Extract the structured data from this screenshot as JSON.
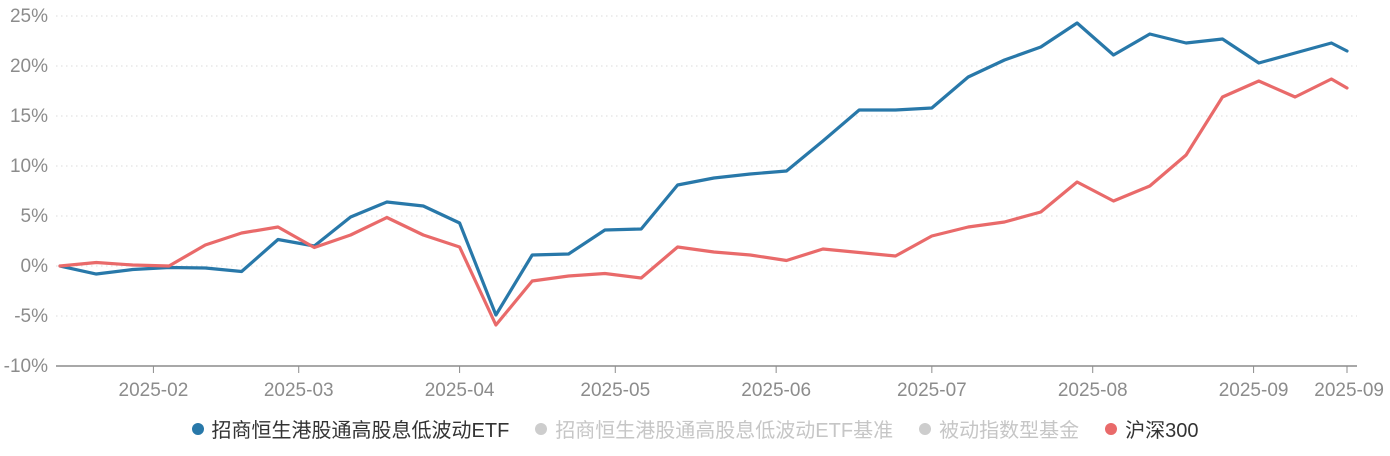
{
  "chart_data": {
    "type": "line",
    "ylabel": "",
    "xlabel": "",
    "ylim": [
      -10,
      25
    ],
    "grid": "horizontal-dotted",
    "legend_position": "bottom-center",
    "axis_label_color": "#8c8c8c",
    "gridline_color": "#e2e2e2",
    "baseline_color": "#8c8c8c",
    "y_ticks": [
      {
        "label": "25%",
        "value": 25
      },
      {
        "label": "20%",
        "value": 20
      },
      {
        "label": "15%",
        "value": 15
      },
      {
        "label": "10%",
        "value": 10
      },
      {
        "label": "5%",
        "value": 5
      },
      {
        "label": "0%",
        "value": 0
      },
      {
        "label": "-5%",
        "value": -5
      },
      {
        "label": "-10%",
        "value": -10
      }
    ],
    "x_ticks": [
      {
        "label": "2025-02",
        "day": 18
      },
      {
        "label": "2025-03",
        "day": 46
      },
      {
        "label": "2025-04",
        "day": 77
      },
      {
        "label": "2025-05",
        "day": 107
      },
      {
        "label": "2025-06",
        "day": 138
      },
      {
        "label": "2025-07",
        "day": 168
      },
      {
        "label": "2025-08",
        "day": 199
      },
      {
        "label": "2025-09",
        "day": 230
      },
      {
        "label": "2025-09",
        "day": 248
      }
    ],
    "total_days": 248,
    "x": [
      "2025-01-14",
      "2025-01-21",
      "2025-01-28",
      "2025-02-04",
      "2025-02-11",
      "2025-02-18",
      "2025-02-25",
      "2025-03-04",
      "2025-03-11",
      "2025-03-18",
      "2025-03-25",
      "2025-04-01",
      "2025-04-08",
      "2025-04-15",
      "2025-04-22",
      "2025-04-29",
      "2025-05-06",
      "2025-05-13",
      "2025-05-20",
      "2025-05-27",
      "2025-06-03",
      "2025-06-10",
      "2025-06-17",
      "2025-06-24",
      "2025-07-01",
      "2025-07-08",
      "2025-07-15",
      "2025-07-22",
      "2025-07-29",
      "2025-08-05",
      "2025-08-12",
      "2025-08-19",
      "2025-08-26",
      "2025-09-02",
      "2025-09-09",
      "2025-09-16",
      "2025-09-19"
    ],
    "days": [
      0,
      7,
      14,
      21,
      28,
      35,
      42,
      49,
      56,
      63,
      70,
      77,
      84,
      91,
      98,
      105,
      112,
      119,
      126,
      133,
      140,
      147,
      154,
      161,
      168,
      175,
      182,
      189,
      196,
      203,
      210,
      217,
      224,
      231,
      238,
      245,
      248
    ],
    "series": [
      {
        "name": "招商恒生港股通高股息低波动ETF",
        "color": "#2878a9",
        "enabled": true,
        "unit": "%",
        "values": [
          0.0,
          -0.8,
          -0.35,
          -0.15,
          -0.2,
          -0.55,
          2.65,
          2.0,
          4.9,
          6.4,
          6.0,
          4.3,
          -4.9,
          1.1,
          1.2,
          3.6,
          3.7,
          8.1,
          8.8,
          9.2,
          9.5,
          12.5,
          15.6,
          15.6,
          15.8,
          18.9,
          20.6,
          21.9,
          24.3,
          21.1,
          23.2,
          22.3,
          22.7,
          20.3,
          21.3,
          22.3,
          21.5
        ]
      },
      {
        "name": "招商恒生港股通高股息低波动ETF基准",
        "color": "#cdcdcd",
        "enabled": false,
        "unit": "%",
        "values": []
      },
      {
        "name": "被动指数型基金",
        "color": "#cdcdcd",
        "enabled": false,
        "unit": "%",
        "values": []
      },
      {
        "name": "沪深300",
        "color": "#e96a6a",
        "enabled": true,
        "unit": "%",
        "values": [
          0.0,
          0.35,
          0.1,
          0.0,
          2.1,
          3.3,
          3.9,
          1.85,
          3.1,
          4.85,
          3.1,
          1.9,
          -5.9,
          -1.5,
          -1.0,
          -0.75,
          -1.2,
          1.9,
          1.4,
          1.1,
          0.55,
          1.7,
          1.35,
          1.0,
          3.0,
          3.9,
          4.4,
          5.4,
          8.4,
          6.5,
          8.0,
          11.1,
          16.9,
          18.5,
          16.9,
          18.7,
          17.8
        ]
      }
    ]
  },
  "legend": {
    "items": [
      {
        "label": "招商恒生港股通高股息低波动ETF",
        "dot_color": "#2878a9",
        "enabled": true
      },
      {
        "label": "招商恒生港股通高股息低波动ETF基准",
        "dot_color": "#cdcdcd",
        "enabled": false
      },
      {
        "label": "被动指数型基金",
        "dot_color": "#cdcdcd",
        "enabled": false
      },
      {
        "label": "沪深300",
        "dot_color": "#e96a6a",
        "enabled": true
      }
    ]
  }
}
